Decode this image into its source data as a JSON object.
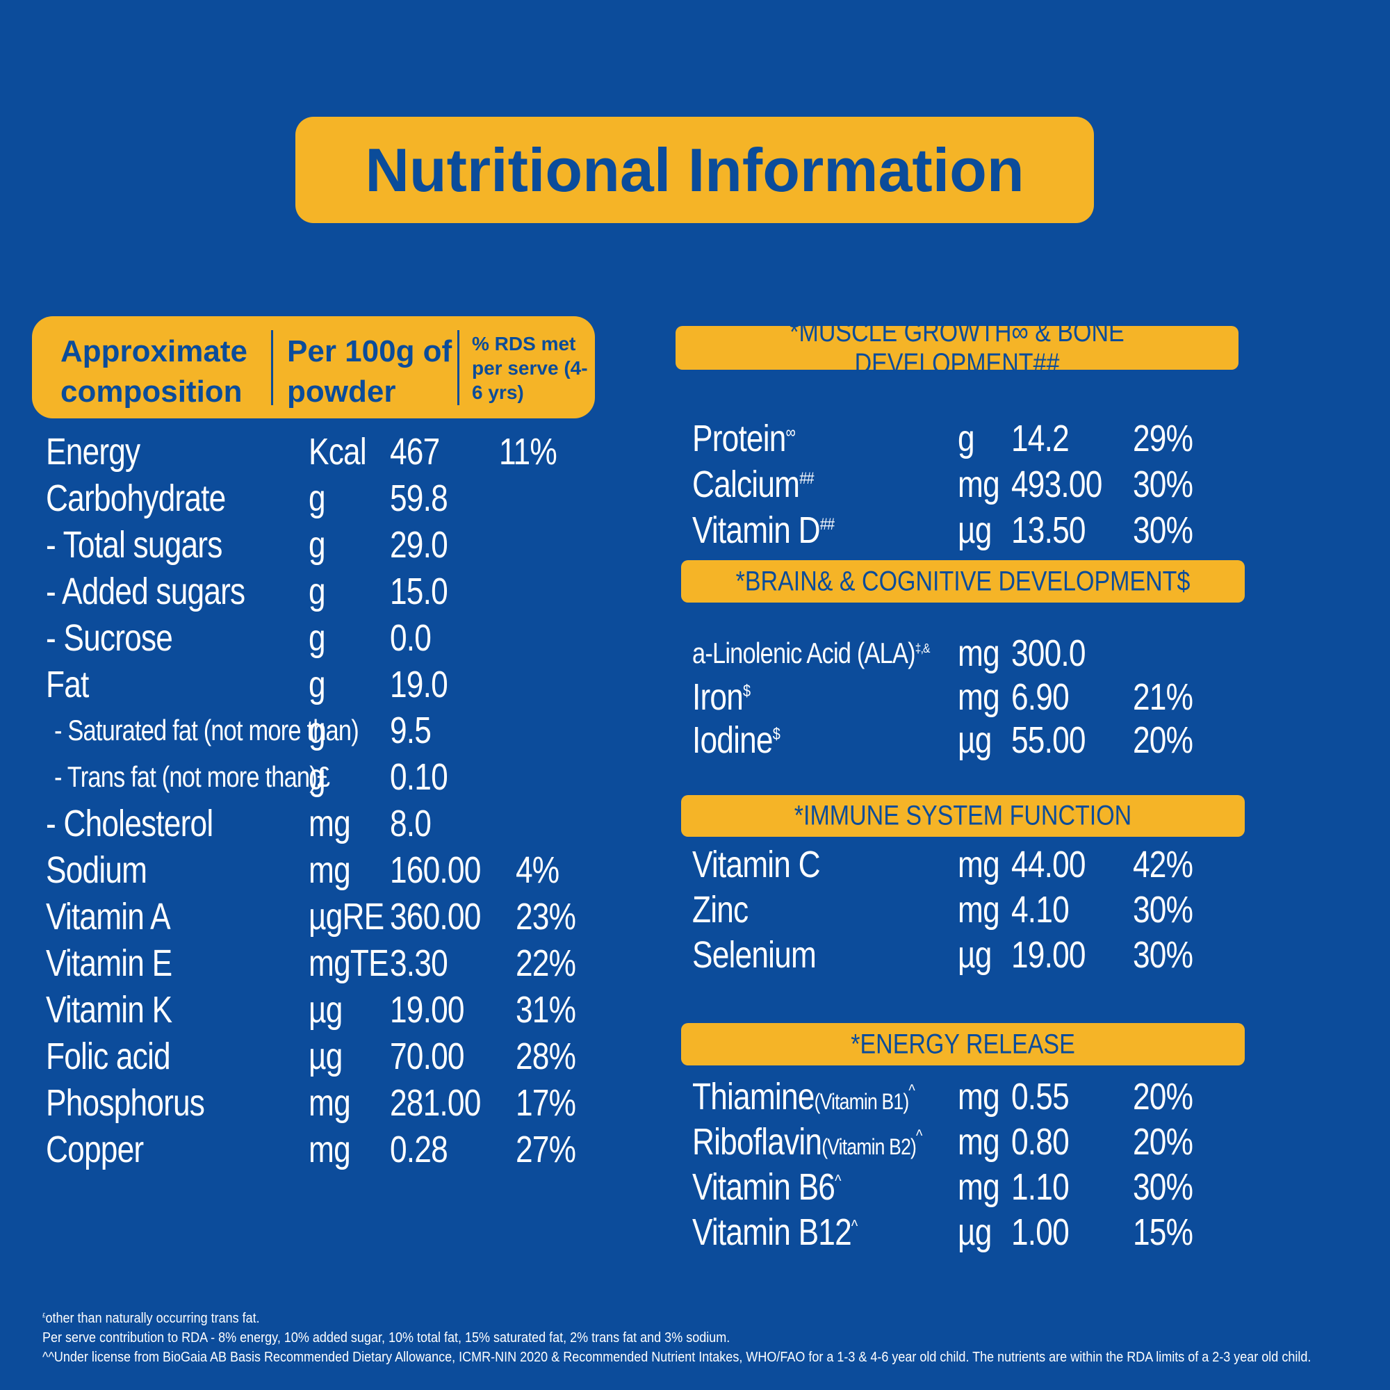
{
  "title": "Nutritional Information",
  "left_table": {
    "header": {
      "col1": "Approximate composition",
      "col2": "Per 100g of powder",
      "col3": "% RDS met per serve (4-6 yrs)"
    },
    "rows": [
      {
        "name": "Energy",
        "unit": "Kcal",
        "value": "467",
        "rds": "11%"
      },
      {
        "name": "Carbohydrate",
        "unit": "g",
        "value": "59.8"
      },
      {
        "name": "- Total sugars",
        "unit": "g",
        "value": "29.0"
      },
      {
        "name": "- Added sugars",
        "unit": "g",
        "value": "15.0"
      },
      {
        "name": "- Sucrose",
        "unit": "g",
        "value": "0.0"
      },
      {
        "name": "Fat",
        "unit": "g",
        "value": "19.0"
      },
      {
        "name": "- Saturated fat (not more than)",
        "unit": "g",
        "value": "9.5"
      },
      {
        "name": "- Trans fat (not more than)£",
        "unit": "g",
        "value": "0.10"
      },
      {
        "name": "- Cholesterol",
        "unit": "mg",
        "value": "8.0"
      },
      {
        "name": "Sodium",
        "unit": "mg",
        "value": "160.00",
        "rds": "4%"
      },
      {
        "name": "Vitamin A",
        "unit": "µgRE",
        "value": "360.00",
        "rds": "23%"
      },
      {
        "name": "Vitamin E",
        "unit": "mgTE",
        "value": "3.30",
        "rds": "22%"
      },
      {
        "name": "Vitamin K",
        "unit": "µg",
        "value": "19.00",
        "rds": "31%"
      },
      {
        "name": "Folic acid",
        "unit": "µg",
        "value": "70.00",
        "rds": "28%"
      },
      {
        "name": "Phosphorus",
        "unit": "mg",
        "value": "281.00",
        "rds": "17%"
      },
      {
        "name": "Copper",
        "unit": "mg",
        "value": "0.28",
        "rds": "27%"
      }
    ]
  },
  "sections": [
    {
      "title": "*MUSCLE GROWTH∞ & BONE DEVELOPMENT##",
      "rows": [
        {
          "name": "Protein",
          "sup": "∞",
          "unit": "g",
          "value": "14.2",
          "rds": "29%"
        },
        {
          "name": "Calcium",
          "sup": "##",
          "unit": "mg",
          "value": "493.00",
          "rds": "30%"
        },
        {
          "name": "Vitamin D",
          "sup": "##",
          "unit": "µg",
          "value": "13.50",
          "rds": "30%"
        }
      ]
    },
    {
      "title": "*BRAIN& & COGNITIVE DEVELOPMENT$",
      "rows": [
        {
          "name": "a-Linolenic Acid (ALA)",
          "sup": "‡,&",
          "unit": "mg",
          "value": "300.0"
        },
        {
          "name": "Iron",
          "sup": "$",
          "unit": "mg",
          "value": "6.90",
          "rds": "21%"
        },
        {
          "name": "Iodine",
          "sup": "$",
          "unit": "µg",
          "value": "55.00",
          "rds": "20%"
        }
      ]
    },
    {
      "title": "*IMMUNE SYSTEM FUNCTION",
      "rows": [
        {
          "name": "Vitamin C",
          "unit": "mg",
          "value": "44.00",
          "rds": "42%"
        },
        {
          "name": "Zinc",
          "unit": "mg",
          "value": "4.10",
          "rds": "30%"
        },
        {
          "name": "Selenium",
          "unit": "µg",
          "value": "19.00",
          "rds": "30%"
        }
      ]
    },
    {
      "title": "*ENERGY RELEASE",
      "rows": [
        {
          "name": "Thiamine",
          "note": "(Vitamin B1)",
          "sup": "^",
          "unit": "mg",
          "value": "0.55",
          "rds": "20%"
        },
        {
          "name": "Riboflavin",
          "note": "(Vitamin B2)",
          "sup": "^",
          "unit": "mg",
          "value": "0.80",
          "rds": "20%"
        },
        {
          "name": "Vitamin B6",
          "sup": "^",
          "unit": "mg",
          "value": "1.10",
          "rds": "30%"
        },
        {
          "name": "Vitamin B12",
          "sup": "^",
          "unit": "µg",
          "value": "1.00",
          "rds": "15%"
        }
      ]
    }
  ],
  "footnotes": [
    {
      "sup": "£",
      "text": "other than naturally occurring trans fat."
    },
    {
      "text": "Per serve contribution to RDA - 8% energy, 10% added sugar, 10% total fat,  15% saturated fat, 2% trans fat and 3% sodium."
    },
    {
      "text": "^^Under license from BioGaia AB Basis Recommended Dietary Allowance, ICMR-NIN 2020 & Recommended Nutrient Intakes, WHO/FAO for a 1-3 & 4-6 year old child. The nutrients are within the RDA limits of a 2-3 year old child."
    }
  ]
}
